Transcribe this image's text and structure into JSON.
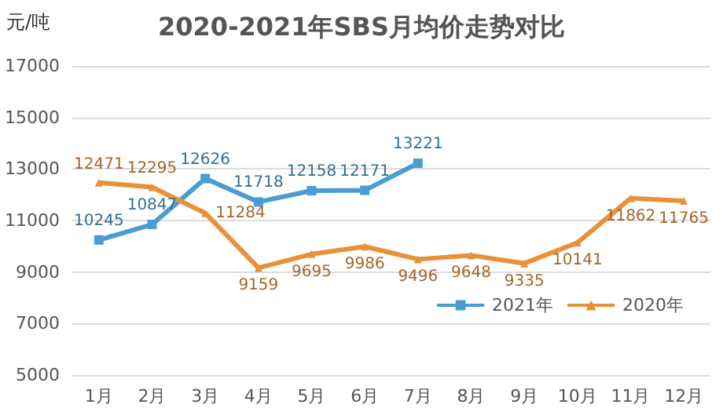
{
  "chart_data": {
    "type": "line",
    "title": "2020-2021年SBS月均价走势对比",
    "ylabel": "元/吨",
    "categories": [
      "1月",
      "2月",
      "3月",
      "4月",
      "5月",
      "6月",
      "7月",
      "8月",
      "9月",
      "10月",
      "11月",
      "12月"
    ],
    "series": [
      {
        "name": "2021年",
        "color": "#4a9dd0",
        "marker": "square",
        "values": [
          10245,
          10847,
          12626,
          11718,
          12158,
          12171,
          13221,
          null,
          null,
          null,
          null,
          null
        ]
      },
      {
        "name": "2020年",
        "color": "#e8913a",
        "marker": "triangle",
        "values": [
          12471,
          12295,
          11284,
          9159,
          9695,
          9986,
          9496,
          9648,
          9335,
          10141,
          11862,
          11765
        ]
      }
    ],
    "ylim": [
      5000,
      17000
    ],
    "yticks": [
      5000,
      7000,
      9000,
      11000,
      13000,
      15000,
      17000
    ],
    "grid": "y",
    "legend": "bottom right",
    "data_labels": true
  }
}
